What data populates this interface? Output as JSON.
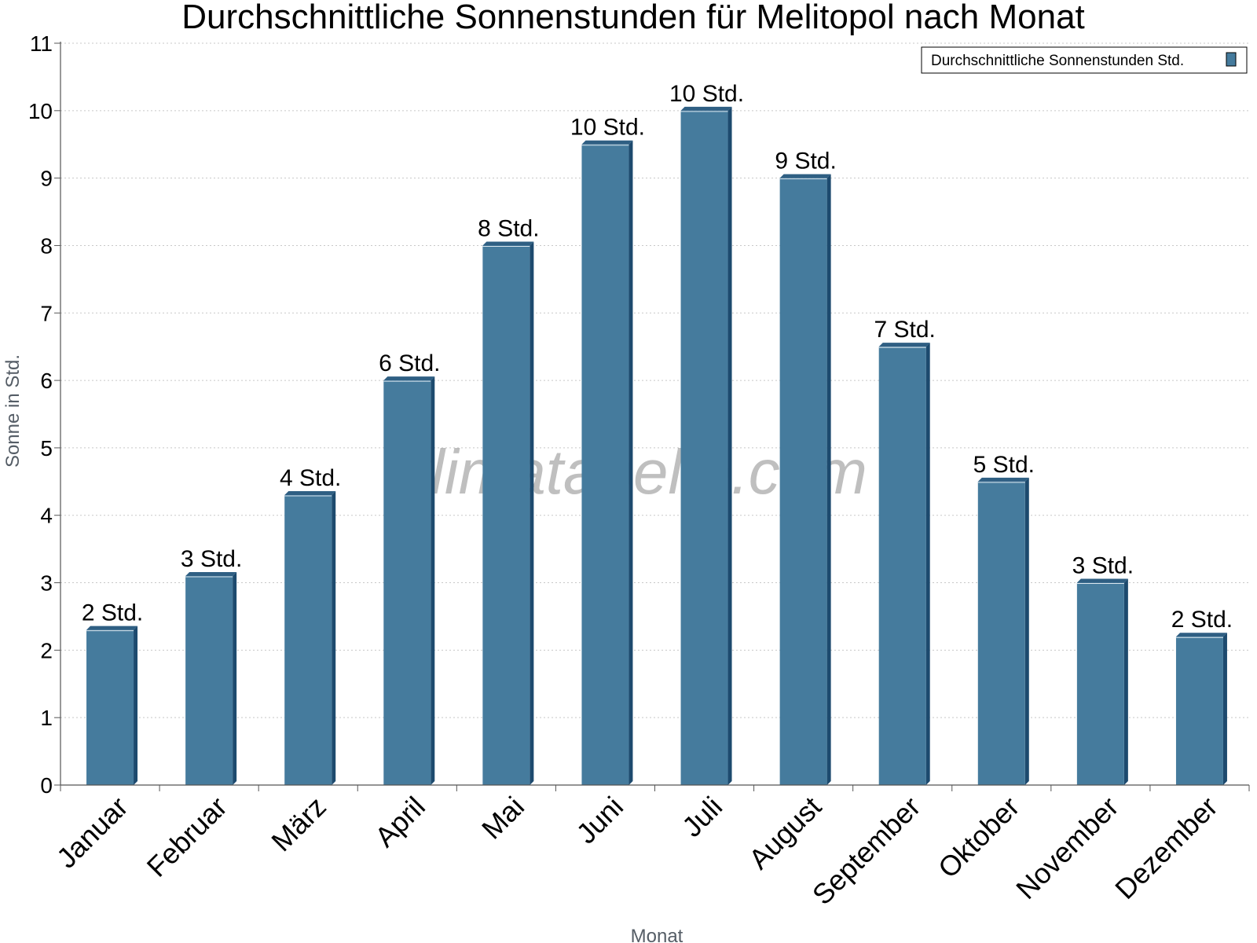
{
  "chart_data": {
    "type": "bar",
    "title": "Durchschnittliche Sonnenstunden für Melitopol nach Monat",
    "xlabel": "Monat",
    "ylabel": "Sonne in Std.",
    "ylim": [
      0,
      11
    ],
    "yticks": [
      "0",
      "1",
      "2",
      "3",
      "4",
      "5",
      "6",
      "7",
      "8",
      "9",
      "10",
      "11"
    ],
    "grid": true,
    "legend_position": "top-right",
    "categories": [
      "Januar",
      "Februar",
      "März",
      "April",
      "Mai",
      "Juni",
      "Juli",
      "August",
      "September",
      "Oktober",
      "November",
      "Dezember"
    ],
    "series": [
      {
        "name": "Durchschnittliche Sonnenstunden Std.",
        "values": [
          2.3,
          3.1,
          4.3,
          6.0,
          8.0,
          9.5,
          10.0,
          9.0,
          6.5,
          4.5,
          3.0,
          2.2
        ],
        "labels": [
          "2 Std.",
          "3 Std.",
          "4 Std.",
          "6 Std.",
          "8 Std.",
          "10 Std.",
          "10 Std.",
          "9 Std.",
          "7 Std.",
          "5 Std.",
          "3 Std.",
          "2 Std."
        ]
      }
    ],
    "colors": {
      "bar": "#457b9d",
      "bar_side": "#1d4a6e",
      "bar_top": "#2f5f83"
    },
    "watermark": "klimatabelle.com"
  }
}
